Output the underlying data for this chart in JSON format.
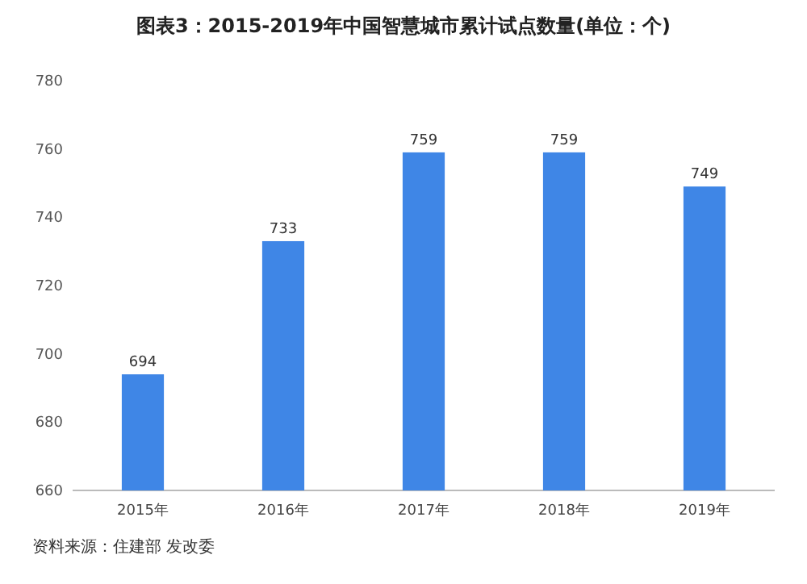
{
  "chart_data": {
    "type": "bar",
    "title": "图表3：2015-2019年中国智慧城市累计试点数量(单位：个)",
    "categories": [
      "2015年",
      "2016年",
      "2017年",
      "2018年",
      "2019年"
    ],
    "values": [
      694,
      733,
      759,
      759,
      749
    ],
    "color": "#3f86e6",
    "ylim": [
      660,
      780
    ],
    "yticks": [
      660,
      680,
      700,
      720,
      740,
      760,
      780
    ],
    "data_labels": true,
    "annotations": [
      "资料来源：住建部 发改委"
    ]
  }
}
